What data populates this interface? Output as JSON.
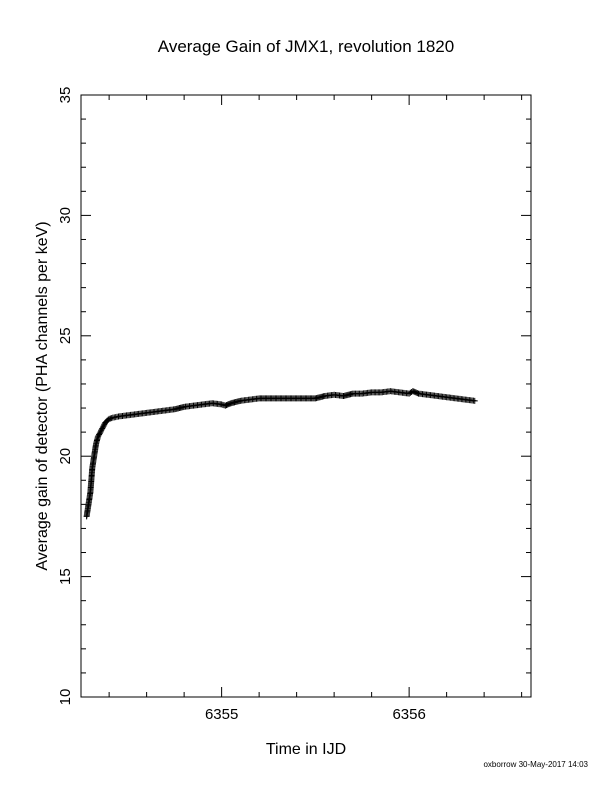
{
  "chart_data": {
    "type": "scatter",
    "title": "Average Gain of JMX1, revolution 1820",
    "xlabel": "Time in IJD",
    "ylabel": "Average gain of detector (PHA channels per keV)",
    "xlim": [
      6354.25,
      6356.65
    ],
    "ylim": [
      10,
      35
    ],
    "xticks": [
      6355,
      6356
    ],
    "yticks": [
      10,
      15,
      20,
      25,
      30,
      35
    ],
    "grid": false,
    "marker": "plus",
    "series": [
      {
        "x": [
          6354.28,
          6354.29,
          6354.3,
          6354.31,
          6354.32,
          6354.33,
          6354.34,
          6354.36,
          6354.38,
          6354.4,
          6354.42,
          6354.45,
          6354.5,
          6354.55,
          6354.6,
          6354.65,
          6354.7,
          6354.75,
          6354.8,
          6354.85,
          6354.9,
          6354.95,
          6355.0,
          6355.02,
          6355.05,
          6355.1,
          6355.15,
          6355.2,
          6355.3,
          6355.4,
          6355.5,
          6355.55,
          6355.6,
          6355.65,
          6355.7,
          6355.75,
          6355.8,
          6355.85,
          6355.9,
          6355.95,
          6356.0,
          6356.02,
          6356.05,
          6356.1,
          6356.15,
          6356.2,
          6356.25,
          6356.3,
          6356.35
        ],
        "y": [
          17.5,
          18.0,
          18.5,
          19.5,
          20.0,
          20.5,
          20.8,
          21.1,
          21.4,
          21.55,
          21.6,
          21.65,
          21.7,
          21.75,
          21.8,
          21.85,
          21.9,
          21.95,
          22.05,
          22.1,
          22.15,
          22.2,
          22.15,
          22.1,
          22.2,
          22.3,
          22.35,
          22.4,
          22.4,
          22.4,
          22.4,
          22.5,
          22.55,
          22.5,
          22.6,
          22.6,
          22.65,
          22.65,
          22.7,
          22.65,
          22.6,
          22.7,
          22.6,
          22.55,
          22.5,
          22.45,
          22.4,
          22.35,
          22.3
        ]
      }
    ]
  },
  "footer": "oxborrow 30-May-2017 14:03"
}
